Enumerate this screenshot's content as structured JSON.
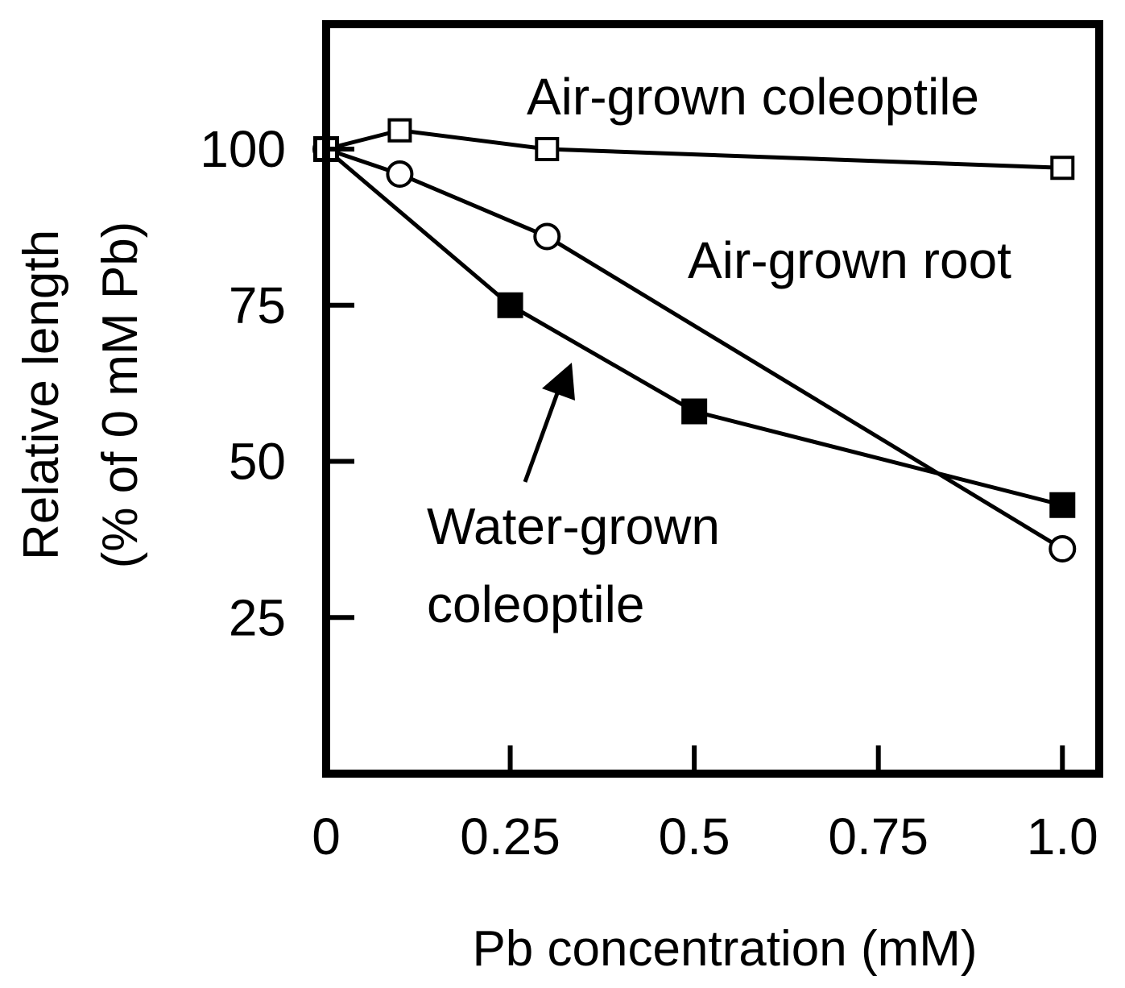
{
  "chart_data": {
    "type": "line",
    "xlabel": "Pb concentration (mM)",
    "ylabel": [
      "Relative length",
      "(% of 0 mM Pb)"
    ],
    "xlim": [
      0,
      1.05
    ],
    "ylim": [
      0,
      120
    ],
    "x_ticks": [
      0,
      0.25,
      0.5,
      0.75,
      1.0
    ],
    "x_tick_labels": [
      "0",
      "0.25",
      "0.5",
      "0.75",
      "1.0"
    ],
    "y_ticks": [
      25,
      50,
      75,
      100
    ],
    "y_tick_labels": [
      "25",
      "50",
      "75",
      "100"
    ],
    "grid": false,
    "legend": "inline labels",
    "series": [
      {
        "name": "Air-grown coleoptile",
        "marker": "open-square",
        "x": [
          0,
          0.1,
          0.3,
          1.0
        ],
        "y": [
          100,
          103,
          100,
          97
        ]
      },
      {
        "name": "Air-grown root",
        "marker": "open-circle",
        "x": [
          0,
          0.1,
          0.3,
          1.0
        ],
        "y": [
          100,
          96,
          86,
          36
        ]
      },
      {
        "name": "Water-grown coleoptile",
        "label_lines": [
          "Water-grown",
          "coleoptile"
        ],
        "marker": "filled-square",
        "x": [
          0,
          0.25,
          0.5,
          1.0
        ],
        "y": [
          100,
          75,
          58,
          43
        ]
      }
    ]
  }
}
